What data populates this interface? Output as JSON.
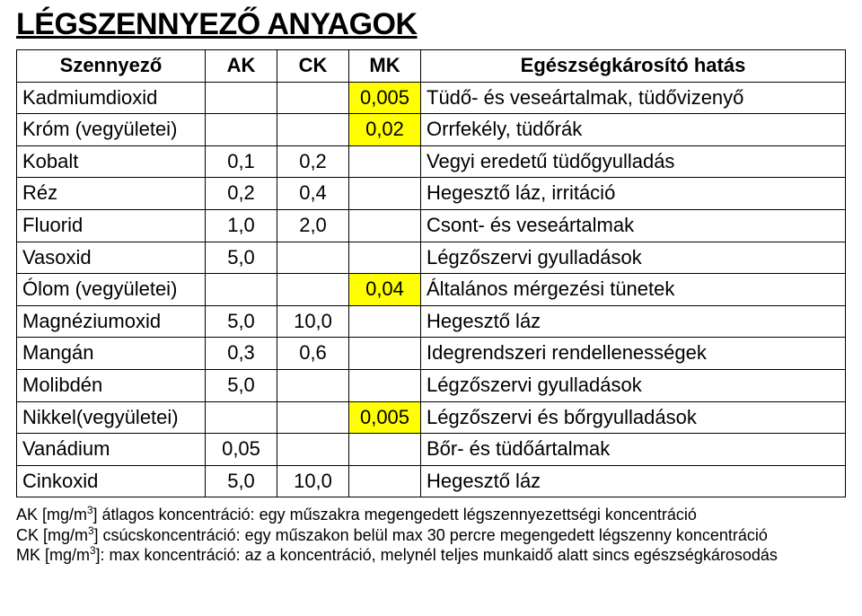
{
  "title": "LÉGSZENNYEZŐ ANYAGOK",
  "headers": {
    "name": "Szennyező",
    "ak": "AK",
    "ck": "CK",
    "mk": "MK",
    "effect": "Egészségkárosító hatás"
  },
  "rows": [
    {
      "name": "Kadmiumdioxid",
      "ak": "",
      "ck": "",
      "mk": "0,005",
      "mk_hl": true,
      "effect": "Tüdő- és veseártalmak, tüdővizenyő"
    },
    {
      "name": "Króm (vegyületei)",
      "ak": "",
      "ck": "",
      "mk": "0,02",
      "mk_hl": true,
      "effect": "Orrfekély, tüdőrák"
    },
    {
      "name": "Kobalt",
      "ak": "0,1",
      "ck": "0,2",
      "mk": "",
      "effect": "Vegyi eredetű tüdőgyulladás"
    },
    {
      "name": "Réz",
      "ak": "0,2",
      "ck": "0,4",
      "mk": "",
      "effect": "Hegesztő láz, irritáció"
    },
    {
      "name": "Fluorid",
      "ak": "1,0",
      "ck": "2,0",
      "mk": "",
      "effect": "Csont- és veseártalmak"
    },
    {
      "name": "Vasoxid",
      "ak": "5,0",
      "ck": "",
      "mk": "",
      "effect": "Légzőszervi gyulladások"
    },
    {
      "name": "Ólom (vegyületei)",
      "ak": "",
      "ck": "",
      "mk": "0,04",
      "mk_hl": true,
      "effect": "Általános mérgezési tünetek"
    },
    {
      "name": "Magnéziumoxid",
      "ak": "5,0",
      "ck": "10,0",
      "mk": "",
      "effect": "Hegesztő láz"
    },
    {
      "name": "Mangán",
      "ak": "0,3",
      "ck": "0,6",
      "mk": "",
      "effect": "Idegrendszeri rendellenességek"
    },
    {
      "name": "Molibdén",
      "ak": "5,0",
      "ck": "",
      "mk": "",
      "effect": "Légzőszervi gyulladások"
    },
    {
      "name": "Nikkel(vegyületei)",
      "ak": "",
      "ck": "",
      "mk": "0,005",
      "mk_hl": true,
      "effect": "Légzőszervi és bőrgyulladások"
    },
    {
      "name": "Vanádium",
      "ak": "0,05",
      "ck": "",
      "mk": "",
      "effect": "Bőr- és tüdőártalmak"
    },
    {
      "name": "Cinkoxid",
      "ak": "5,0",
      "ck": "10,0",
      "mk": "",
      "effect": "Hegesztő láz"
    }
  ],
  "footnotes": {
    "line1_a": "AK [mg/m",
    "line1_b": "] átlagos koncentráció: egy műszakra megengedett légszennyezettségi koncentráció",
    "line2_a": "CK [mg/m",
    "line2_b": "] csúcskoncentráció: egy műszakon belül max 30 percre megengedett légszenny koncentráció",
    "line3_a": "MK [mg/m",
    "line3_b": "]: max koncentráció: az a koncentráció, melynél teljes munkaidő alatt sincs egészségkárosodás",
    "sup": "3"
  },
  "colors": {
    "highlight": "#ffff00",
    "border": "#000000",
    "text": "#000000",
    "background": "#ffffff"
  }
}
